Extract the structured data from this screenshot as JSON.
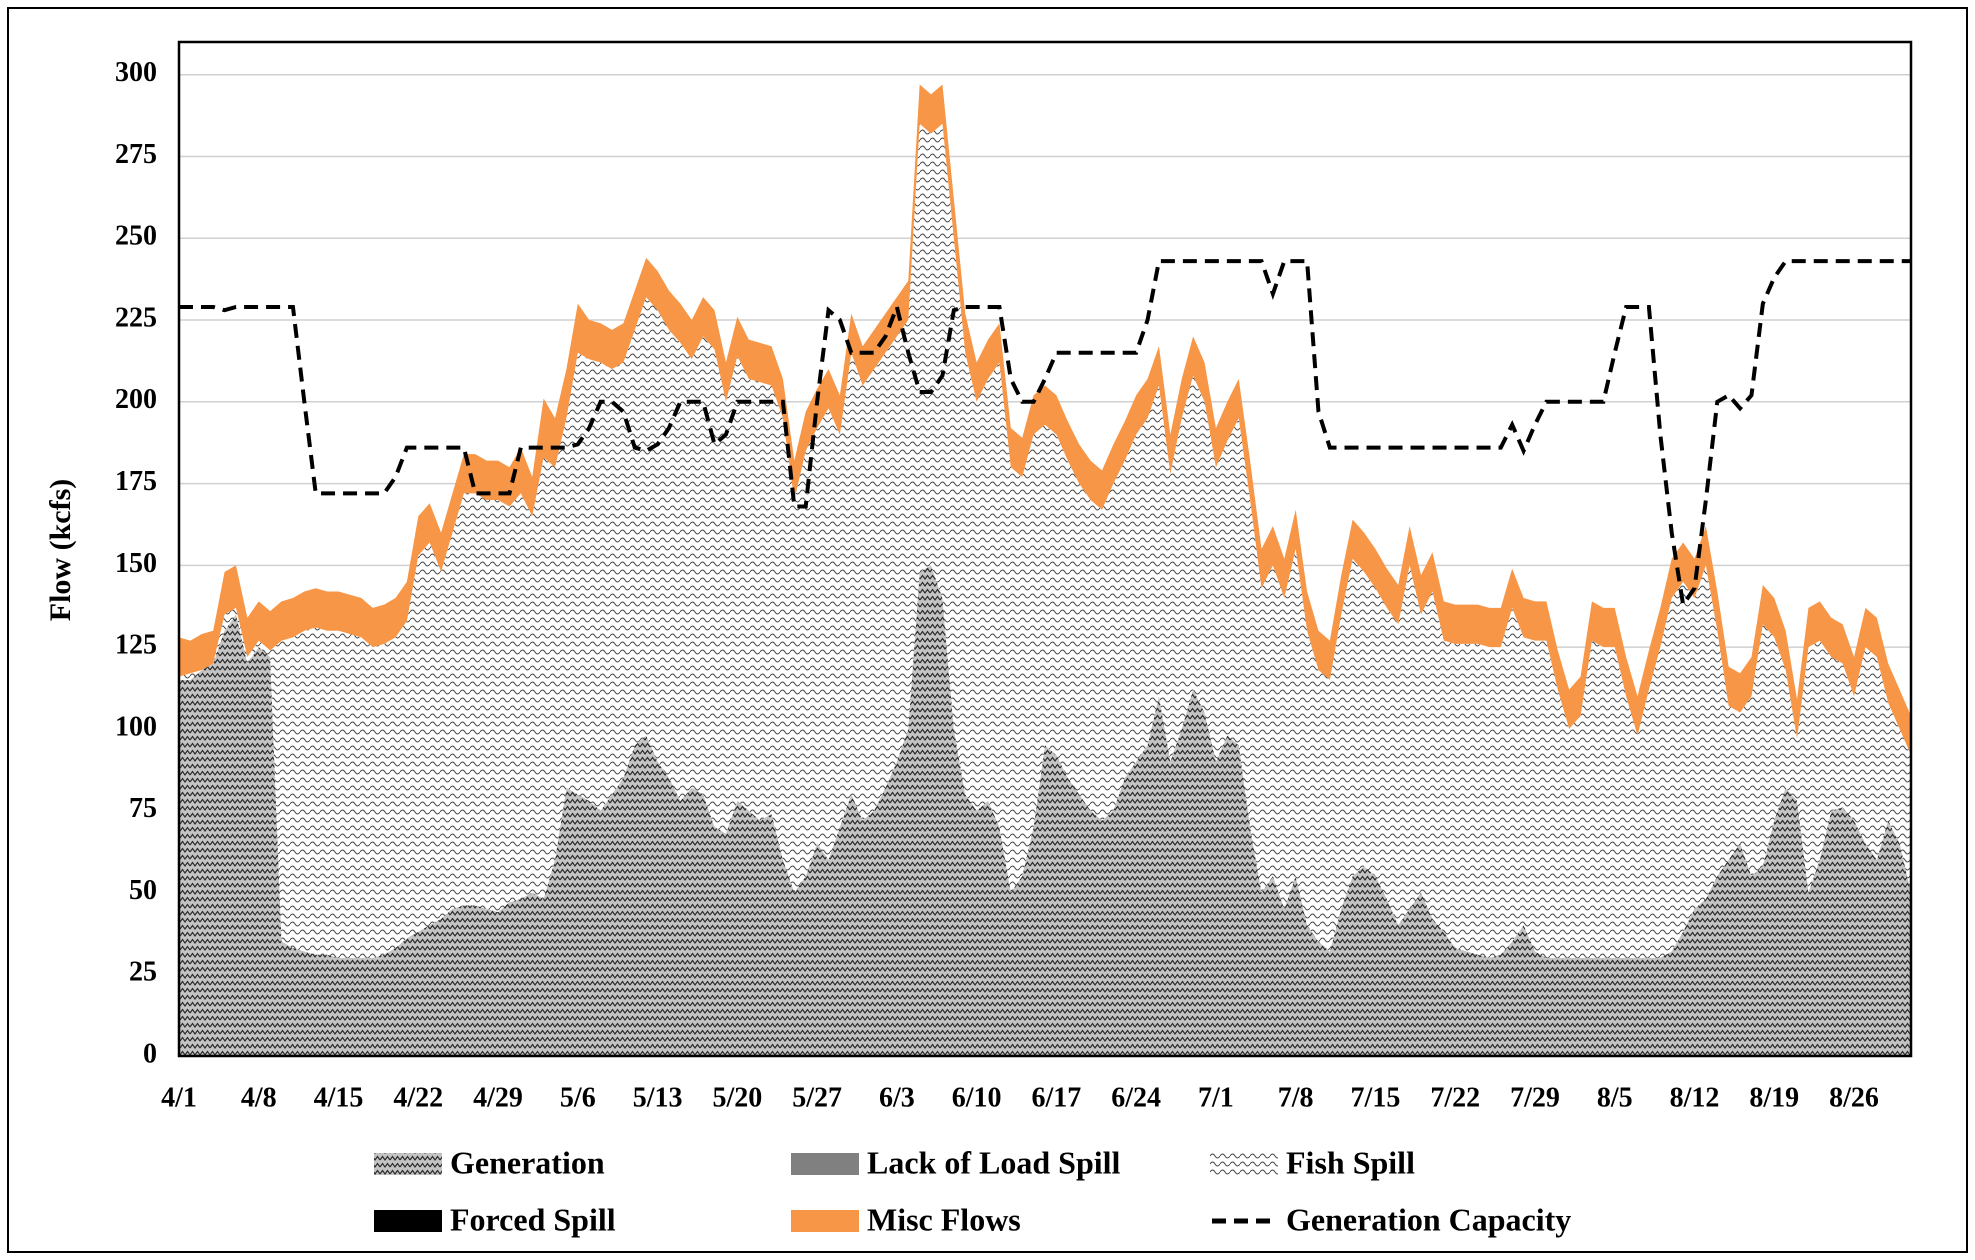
{
  "chart_data": {
    "type": "area",
    "y_label": "Flow  (kcfs)",
    "ylim": [
      0,
      310
    ],
    "yticks": [
      0,
      25,
      50,
      75,
      100,
      125,
      150,
      175,
      200,
      225,
      250,
      275,
      300
    ],
    "grid": true,
    "categories": [
      "4/1",
      null,
      null,
      null,
      null,
      null,
      null,
      "4/8",
      null,
      null,
      null,
      null,
      null,
      null,
      "4/15",
      null,
      null,
      null,
      null,
      null,
      null,
      "4/22",
      null,
      null,
      null,
      null,
      null,
      null,
      "4/29",
      null,
      null,
      null,
      null,
      null,
      null,
      "5/6",
      null,
      null,
      null,
      null,
      null,
      null,
      "5/13",
      null,
      null,
      null,
      null,
      null,
      null,
      "5/20",
      null,
      null,
      null,
      null,
      null,
      null,
      "5/27",
      null,
      null,
      null,
      null,
      null,
      null,
      "6/3",
      null,
      null,
      null,
      null,
      null,
      null,
      "6/10",
      null,
      null,
      null,
      null,
      null,
      null,
      "6/17",
      null,
      null,
      null,
      null,
      null,
      null,
      "6/24",
      null,
      null,
      null,
      null,
      null,
      null,
      "7/1",
      null,
      null,
      null,
      null,
      null,
      null,
      "7/8",
      null,
      null,
      null,
      null,
      null,
      null,
      "7/15",
      null,
      null,
      null,
      null,
      null,
      null,
      "7/22",
      null,
      null,
      null,
      null,
      null,
      null,
      "7/29",
      null,
      null,
      null,
      null,
      null,
      null,
      "8/5",
      null,
      null,
      null,
      null,
      null,
      null,
      "8/12",
      null,
      null,
      null,
      null,
      null,
      null,
      "8/19",
      null,
      null,
      null,
      null,
      null,
      null,
      "8/26",
      null,
      null,
      null,
      null,
      null
    ],
    "series": [
      {
        "name": "Generation",
        "color": "#c4c4c4",
        "pattern": "zigzag",
        "values": [
          115,
          115,
          118,
          120,
          130,
          135,
          120,
          125,
          122,
          35,
          33,
          32,
          31,
          31,
          30,
          30,
          30,
          30,
          31,
          33,
          36,
          38,
          40,
          42,
          45,
          46,
          46,
          45,
          44,
          47,
          48,
          50,
          48,
          60,
          82,
          80,
          78,
          75,
          80,
          85,
          95,
          98,
          90,
          85,
          78,
          82,
          80,
          70,
          68,
          78,
          75,
          72,
          74,
          60,
          50,
          55,
          65,
          60,
          70,
          80,
          72,
          75,
          82,
          90,
          100,
          148,
          150,
          140,
          100,
          80,
          75,
          78,
          70,
          50,
          55,
          70,
          95,
          92,
          85,
          80,
          75,
          72,
          75,
          85,
          90,
          95,
          110,
          90,
          100,
          112,
          105,
          90,
          98,
          95,
          70,
          50,
          55,
          45,
          55,
          40,
          35,
          32,
          45,
          55,
          58,
          55,
          48,
          40,
          45,
          50,
          42,
          38,
          33,
          32,
          31,
          30,
          31,
          35,
          40,
          32,
          30,
          30,
          30,
          30,
          30,
          30,
          30,
          30,
          30,
          30,
          30,
          32,
          38,
          45,
          48,
          55,
          60,
          65,
          55,
          58,
          72,
          82,
          78,
          50,
          60,
          75,
          76,
          72,
          65,
          60,
          72,
          65,
          50
        ]
      },
      {
        "name": "Lack of Load Spill",
        "color": "#808080",
        "pattern": "solid",
        "values": [
          0,
          0,
          0,
          0,
          0,
          0,
          0,
          0,
          0,
          0,
          0,
          0,
          0,
          0,
          0,
          0,
          0,
          0,
          0,
          0,
          0,
          0,
          0,
          0,
          0,
          0,
          0,
          0,
          0,
          0,
          0,
          0,
          0,
          0,
          0,
          0,
          0,
          0,
          0,
          0,
          0,
          0,
          0,
          0,
          0,
          0,
          0,
          0,
          0,
          0,
          0,
          0,
          0,
          0,
          0,
          0,
          0,
          0,
          0,
          0,
          0,
          0,
          0,
          0,
          0,
          0,
          0,
          0,
          0,
          0,
          0,
          0,
          0,
          0,
          0,
          0,
          0,
          0,
          0,
          0,
          0,
          0,
          0,
          0,
          0,
          0,
          0,
          0,
          0,
          0,
          0,
          0,
          0,
          0,
          0,
          0,
          0,
          0,
          0,
          0,
          0,
          0,
          0,
          0,
          0,
          0,
          0,
          0,
          0,
          0,
          0,
          0,
          0,
          0,
          0,
          0,
          0,
          0,
          0,
          0,
          0,
          0,
          0,
          0,
          0,
          0,
          0,
          0,
          0,
          0,
          0,
          0,
          0,
          0,
          0,
          0,
          0,
          0,
          0,
          0,
          0,
          0,
          0,
          0,
          0,
          0,
          0,
          0,
          0,
          0,
          0,
          0,
          0
        ]
      },
      {
        "name": "Fish Spill",
        "color": "#ffffff",
        "pattern": "scallop",
        "values": [
          1,
          2,
          0,
          0,
          5,
          2,
          2,
          2,
          2,
          92,
          95,
          98,
          100,
          99,
          100,
          99,
          98,
          95,
          95,
          95,
          97,
          115,
          117,
          106,
          115,
          126,
          126,
          125,
          126,
          121,
          124,
          115,
          135,
          120,
          113,
          135,
          135,
          137,
          130,
          127,
          127,
          134,
          138,
          137,
          140,
          131,
          140,
          146,
          132,
          136,
          132,
          134,
          131,
          135,
          120,
          130,
          127,
          138,
          120,
          135,
          133,
          135,
          133,
          130,
          125,
          137,
          132,
          145,
          150,
          135,
          125,
          129,
          142,
          130,
          122,
          120,
          98,
          98,
          97,
          95,
          95,
          95,
          100,
          97,
          100,
          100,
          95,
          88,
          95,
          96,
          95,
          90,
          90,
          100,
          100,
          93,
          95,
          95,
          100,
          90,
          83,
          83,
          90,
          97,
          90,
          88,
          89,
          92,
          105,
          85,
          100,
          89,
          93,
          94,
          95,
          95,
          94,
          102,
          88,
          95,
          97,
          82,
          70,
          74,
          97,
          95,
          95,
          80,
          68,
          82,
          95,
          108,
          107,
          95,
          102,
          75,
          47,
          40,
          55,
          74,
          56,
          36,
          19,
          75,
          67,
          47,
          44,
          38,
          60,
          62,
          36,
          35,
          42
        ]
      },
      {
        "name": "Forced Spill",
        "color": "#000000",
        "pattern": "solid",
        "values": [
          0,
          0,
          0,
          0,
          0,
          0,
          0,
          0,
          0,
          0,
          0,
          0,
          0,
          0,
          0,
          0,
          0,
          0,
          0,
          0,
          0,
          0,
          0,
          0,
          0,
          0,
          0,
          0,
          0,
          0,
          0,
          0,
          0,
          0,
          0,
          0,
          0,
          0,
          0,
          0,
          0,
          0,
          0,
          0,
          0,
          0,
          0,
          0,
          0,
          0,
          0,
          0,
          0,
          0,
          0,
          0,
          0,
          0,
          0,
          0,
          0,
          0,
          0,
          0,
          0,
          0,
          0,
          0,
          0,
          0,
          0,
          0,
          0,
          0,
          0,
          0,
          0,
          0,
          0,
          0,
          0,
          0,
          0,
          0,
          0,
          0,
          0,
          0,
          0,
          0,
          0,
          0,
          0,
          0,
          0,
          0,
          0,
          0,
          0,
          0,
          0,
          0,
          0,
          0,
          0,
          0,
          0,
          0,
          0,
          0,
          0,
          0,
          0,
          0,
          0,
          0,
          0,
          0,
          0,
          0,
          0,
          0,
          0,
          0,
          0,
          0,
          0,
          0,
          0,
          0,
          0,
          0,
          0,
          0,
          0,
          0,
          0,
          0,
          0,
          0,
          0,
          0,
          0,
          0,
          0,
          0,
          0,
          0,
          0,
          0,
          0,
          0,
          0
        ]
      },
      {
        "name": "Misc Flows",
        "color": "#f79646",
        "pattern": "solid",
        "values": [
          12,
          10,
          11,
          10,
          13,
          13,
          12,
          12,
          12,
          12,
          12,
          12,
          12,
          12,
          12,
          12,
          12,
          12,
          12,
          12,
          12,
          12,
          12,
          12,
          12,
          12,
          12,
          12,
          12,
          12,
          14,
          12,
          18,
          15,
          15,
          15,
          12,
          12,
          12,
          12,
          12,
          12,
          12,
          12,
          12,
          12,
          12,
          12,
          12,
          12,
          12,
          12,
          12,
          12,
          12,
          12,
          12,
          12,
          12,
          12,
          12,
          12,
          12,
          12,
          12,
          12,
          12,
          12,
          12,
          12,
          12,
          12,
          12,
          12,
          12,
          12,
          12,
          12,
          12,
          12,
          12,
          12,
          12,
          12,
          12,
          12,
          12,
          12,
          12,
          12,
          12,
          12,
          12,
          12,
          12,
          12,
          12,
          12,
          12,
          12,
          12,
          12,
          12,
          12,
          12,
          12,
          12,
          12,
          12,
          12,
          12,
          12,
          12,
          12,
          12,
          12,
          12,
          12,
          12,
          12,
          12,
          12,
          12,
          12,
          12,
          12,
          12,
          12,
          12,
          12,
          12,
          12,
          12,
          12,
          12,
          12,
          12,
          12,
          12,
          12,
          12,
          12,
          12,
          12,
          12,
          12,
          12,
          12,
          12,
          12,
          12,
          12,
          12
        ]
      },
      {
        "name": "Generation Capacity",
        "color": "#000000",
        "line": "dashed",
        "values": [
          229,
          229,
          229,
          229,
          228,
          229,
          229,
          229,
          229,
          229,
          229,
          200,
          172,
          172,
          172,
          172,
          172,
          172,
          172,
          177,
          186,
          186,
          186,
          186,
          186,
          186,
          172,
          172,
          172,
          172,
          186,
          186,
          186,
          186,
          186,
          187,
          192,
          200,
          200,
          197,
          186,
          185,
          187,
          192,
          200,
          200,
          200,
          187,
          190,
          200,
          200,
          200,
          200,
          200,
          168,
          168,
          200,
          228,
          225,
          215,
          215,
          215,
          220,
          229,
          215,
          203,
          203,
          208,
          228,
          229,
          229,
          229,
          229,
          207,
          200,
          200,
          207,
          215,
          215,
          215,
          215,
          215,
          215,
          215,
          215,
          225,
          243,
          243,
          243,
          243,
          243,
          243,
          243,
          243,
          243,
          243,
          233,
          243,
          243,
          243,
          197,
          186,
          186,
          186,
          186,
          186,
          186,
          186,
          186,
          186,
          186,
          186,
          186,
          186,
          186,
          186,
          186,
          193,
          185,
          193,
          200,
          200,
          200,
          200,
          200,
          200,
          215,
          229,
          229,
          229,
          190,
          160,
          138,
          143,
          170,
          200,
          202,
          198,
          202,
          230,
          238,
          243,
          243,
          243,
          243,
          243,
          243,
          243,
          243,
          243,
          243,
          243,
          243
        ]
      }
    ]
  }
}
